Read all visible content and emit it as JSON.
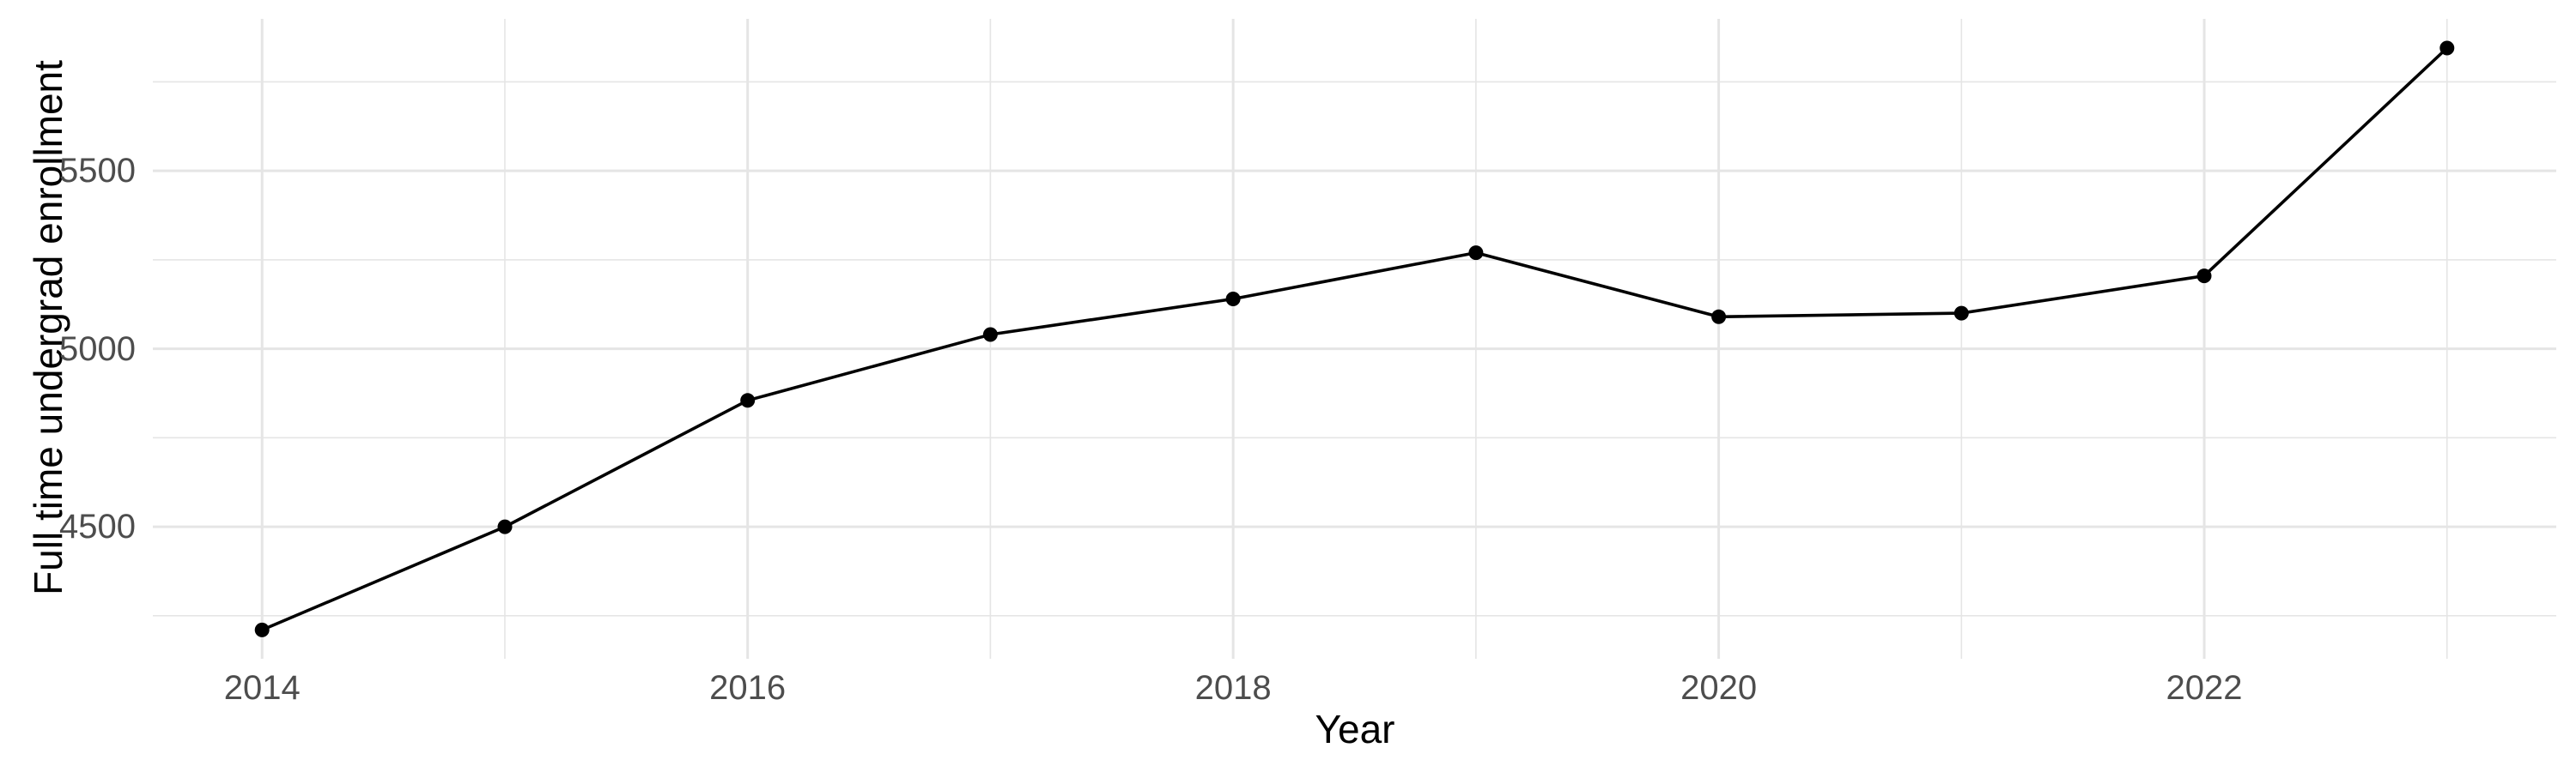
{
  "figure": {
    "background": "#ffffff"
  },
  "chart_data": {
    "type": "line",
    "title": "",
    "xlabel": "Year",
    "ylabel": "Full time undergrad enrollment",
    "series": [
      {
        "name": "Full time undergrad enrollment",
        "x": [
          2014,
          2015,
          2016,
          2017,
          2018,
          2019,
          2020,
          2021,
          2022,
          2023
        ],
        "y": [
          4210,
          4500,
          4855,
          5040,
          5140,
          5270,
          5090,
          5100,
          5205,
          5845
        ]
      }
    ],
    "x_ticks": [
      "2014",
      "2016",
      "2018",
      "2020",
      "2022"
    ],
    "x_tick_values": [
      2014,
      2016,
      2018,
      2020,
      2022
    ],
    "y_ticks": [
      "4500",
      "5000",
      "5500"
    ],
    "y_tick_values": [
      4500,
      5000,
      5500
    ],
    "x_minor_gridlines": [
      2015,
      2017,
      2019,
      2021,
      2023
    ],
    "y_minor_gridlines": [
      4250,
      4750,
      5250,
      5750
    ],
    "xlim": [
      2013.55,
      2023.45
    ],
    "ylim": [
      4129,
      5927
    ],
    "grid": "major+minor",
    "legend": "none",
    "point_markers": true,
    "line_color": "#000000",
    "marker_color": "#000000",
    "grid_color": "#e5e5e5",
    "tick_label_color": "#4d4d4d",
    "axis_title_color": "#000000"
  }
}
